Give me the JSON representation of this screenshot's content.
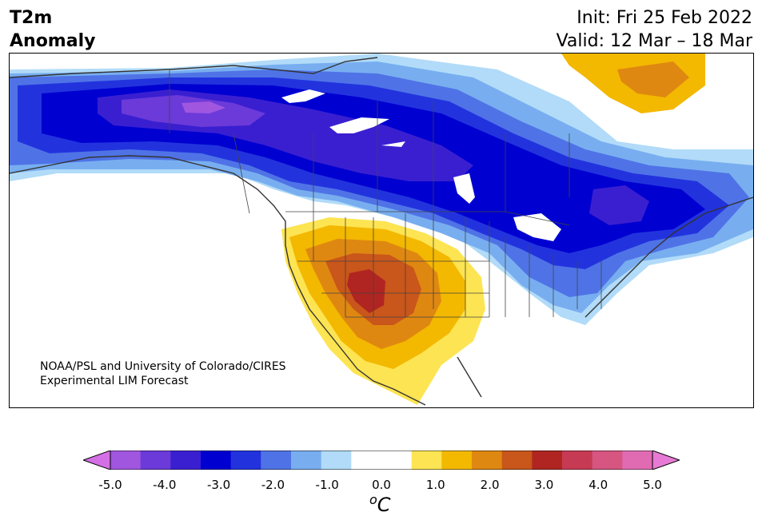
{
  "header": {
    "title_line1": "T2m",
    "title_line2": "Anomaly",
    "init": "Init: Fri 25 Feb 2022",
    "valid": "Valid: 12 Mar – 18 Mar"
  },
  "map": {
    "credit_line1": "NOAA/PSL and University of Colorado/CIRES",
    "credit_line2": "Experimental LIM Forecast",
    "region": "North America"
  },
  "colorbar": {
    "unit_base": "C",
    "unit_sup": "o",
    "ticks": [
      "-5.0",
      "-4.0",
      "-3.0",
      "-2.0",
      "-1.0",
      "0.0",
      "1.0",
      "2.0",
      "3.0",
      "4.0",
      "5.0"
    ],
    "colors": [
      "#d46fe5",
      "#a056df",
      "#6b3ad9",
      "#3a1fd1",
      "#0000d0",
      "#2233de",
      "#4f73e6",
      "#78aef0",
      "#b1dbf8",
      "#ffffff",
      "#ffffff",
      "#fde452",
      "#f3b800",
      "#df8811",
      "#c9561a",
      "#b02521",
      "#c73a53",
      "#d65581",
      "#e06bb3",
      "#e77ad4"
    ]
  },
  "colors": {
    "cold_deep": "#0000d0",
    "warm_deep": "#b02521"
  }
}
